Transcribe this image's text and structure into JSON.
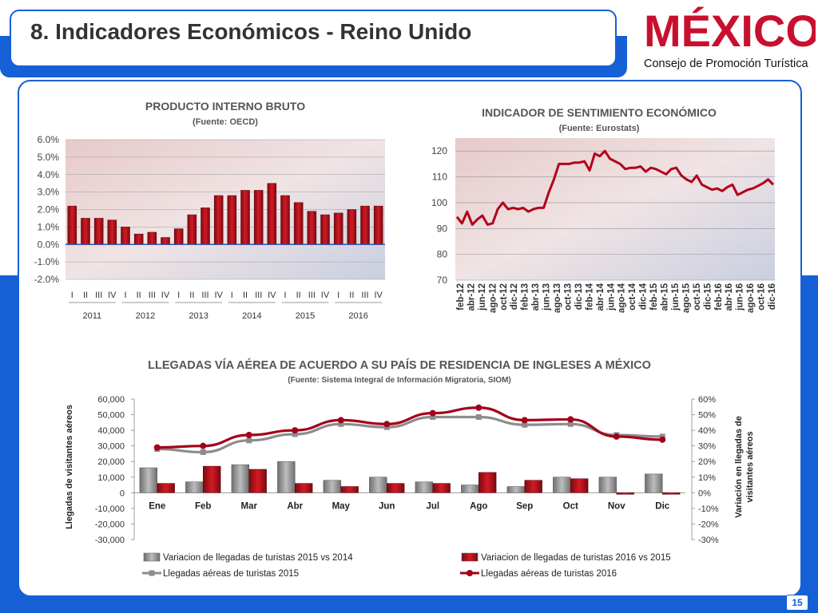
{
  "header": {
    "title": "8. Indicadores Económicos  - Reino Unido",
    "logo_text": "MÉXICO",
    "logo_subtitle": "Consejo de Promoción Turística",
    "page_number": "15"
  },
  "colors": {
    "brand_blue": "#1560d6",
    "bar_red": "#b5121b",
    "bar_gray": "#9a9a9a",
    "line_red": "#a3001b",
    "line_gray": "#8c8c8c"
  },
  "chart_data": [
    {
      "type": "bar",
      "title": "PRODUCTO INTERNO BRUTO",
      "subtitle": "(Fuente: OECD)",
      "quarters": [
        "I",
        "II",
        "III",
        "IV",
        "I",
        "II",
        "III",
        "IV",
        "I",
        "II",
        "III",
        "IV",
        "I",
        "II",
        "III",
        "IV",
        "I",
        "II",
        "III",
        "IV",
        "I",
        "II",
        "III",
        "IV"
      ],
      "years": [
        "2011",
        "2012",
        "2013",
        "2014",
        "2015",
        "2016"
      ],
      "values": [
        2.2,
        1.5,
        1.5,
        1.4,
        1.0,
        0.6,
        0.7,
        0.4,
        0.9,
        1.7,
        2.1,
        2.8,
        2.8,
        3.1,
        3.1,
        3.5,
        2.8,
        2.4,
        1.9,
        1.7,
        1.8,
        2.0,
        2.2,
        2.2
      ],
      "ylim": [
        -2.0,
        6.0
      ],
      "yticks": [
        "-2.0%",
        "-1.0%",
        "0.0%",
        "1.0%",
        "2.0%",
        "3.0%",
        "4.0%",
        "5.0%",
        "6.0%"
      ],
      "grid": true
    },
    {
      "type": "line",
      "title": "INDICADOR DE SENTIMIENTO ECONÓMICO",
      "subtitle": "(Fuente: Eurostats)",
      "x_labels": [
        "feb-12",
        "abr-12",
        "jun-12",
        "ago-12",
        "oct-12",
        "dic-12",
        "feb-13",
        "abr-13",
        "jun-13",
        "ago-13",
        "oct-13",
        "dic-13",
        "feb-14",
        "abr-14",
        "jun-14",
        "ago-14",
        "oct-14",
        "dic-14",
        "feb-15",
        "abr-15",
        "jun-15",
        "ago-15",
        "oct-15",
        "dic-15",
        "feb-16",
        "abr-16",
        "jun-16",
        "ago-16",
        "oct-16",
        "dic-16"
      ],
      "values": [
        94.5,
        92,
        96.5,
        91.5,
        93.5,
        95,
        91.5,
        92,
        97.5,
        100,
        97.5,
        98,
        97.5,
        98,
        96.5,
        97.5,
        98,
        98,
        104,
        109,
        115,
        115,
        115,
        115.5,
        115.5,
        116,
        112.5,
        119,
        118,
        120,
        117,
        116,
        115,
        113,
        113.5,
        113.5,
        114,
        112,
        113.5,
        113,
        112,
        111,
        113,
        113.5,
        110.5,
        109,
        108,
        110.5,
        107,
        106,
        105,
        105.5,
        104.5,
        106,
        107,
        103,
        104,
        105,
        105.5,
        106.5,
        107.5,
        109,
        107
      ],
      "ylim": [
        70,
        125
      ],
      "yticks": [
        "70",
        "80",
        "90",
        "100",
        "110",
        "120"
      ],
      "grid": true
    },
    {
      "type": "bar+line",
      "title": "LLEGADAS VÍA AÉREA DE ACUERDO A SU PAÍS DE RESIDENCIA DE INGLESES A MÉXICO",
      "subtitle": "(Fuente: Sistema Integral de Información Migratoria, SIOM)",
      "categories": [
        "Ene",
        "Feb",
        "Mar",
        "Abr",
        "May",
        "Jun",
        "Jul",
        "Ago",
        "Sep",
        "Oct",
        "Nov",
        "Dic"
      ],
      "ylabel_left": "Llegadas de visitantes aéreos",
      "ylabel_right": "Variación en llegadas de visitantes aéreos",
      "yticks_left": [
        "-30,000",
        "-20,000",
        "-10,000",
        "0",
        "10,000",
        "20,000",
        "30,000",
        "40,000",
        "50,000",
        "60,000"
      ],
      "yticks_right": [
        "-30%",
        "-20%",
        "-10%",
        "0%",
        "10%",
        "20%",
        "30%",
        "40%",
        "50%",
        "60%"
      ],
      "ylim_left": [
        -30000,
        60000
      ],
      "ylim_right": [
        -0.3,
        0.6
      ],
      "series": [
        {
          "name": "Variacion de llegadas de turistas  2015 vs 2014",
          "kind": "bar",
          "axis": "right",
          "color": "#9a9a9a",
          "values": [
            0.16,
            0.07,
            0.18,
            0.2,
            0.08,
            0.1,
            0.07,
            0.05,
            0.04,
            0.1,
            0.1,
            0.12
          ]
        },
        {
          "name": "Variacion de llegadas de turistas  2016 vs 2015",
          "kind": "bar",
          "axis": "right",
          "color": "#b5121b",
          "values": [
            0.06,
            0.17,
            0.15,
            0.06,
            0.04,
            0.06,
            0.06,
            0.13,
            0.08,
            0.09,
            -0.01,
            -0.01
          ]
        },
        {
          "name": "Llegadas aéreas de turistas 2015",
          "kind": "line",
          "axis": "left",
          "color": "#8c8c8c",
          "values": [
            28000,
            26000,
            33500,
            37500,
            44000,
            42000,
            48500,
            48500,
            43500,
            44000,
            37000,
            36000
          ]
        },
        {
          "name": "Llegadas aéreas de turistas 2016",
          "kind": "line",
          "axis": "left",
          "color": "#a3001b",
          "values": [
            29000,
            30000,
            37000,
            40000,
            46500,
            44000,
            51000,
            54500,
            46500,
            47000,
            36000,
            34000
          ]
        }
      ]
    }
  ]
}
